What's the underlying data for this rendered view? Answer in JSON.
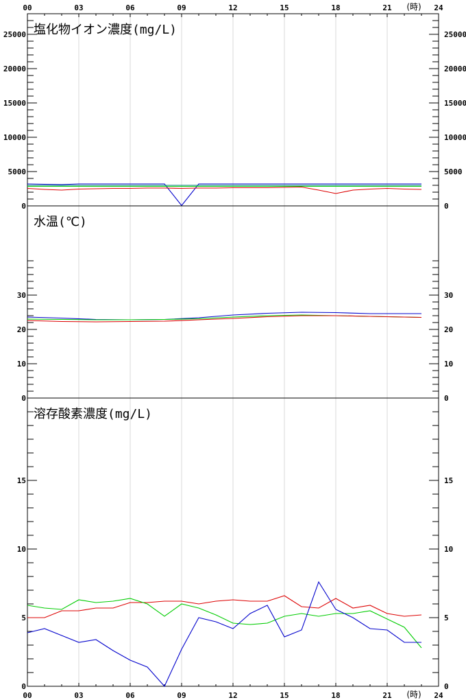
{
  "chart_data": {
    "type": "line",
    "x_axis": {
      "ticks": [
        "00",
        "03",
        "06",
        "09",
        "12",
        "15",
        "18",
        "21",
        "24"
      ],
      "unit": "(時)",
      "range": [
        0,
        24
      ]
    },
    "panels": [
      {
        "title": "塩化物イオン濃度(mg/L)",
        "ylim": [
          0,
          28000
        ],
        "yticks": [
          0,
          5000,
          10000,
          15000,
          20000,
          25000
        ],
        "minor_step": 1000,
        "series": [
          {
            "color": "#0000cc",
            "x": [
              0,
              1,
              2,
              3,
              4,
              5,
              6,
              7,
              8,
              9,
              10,
              11,
              12,
              13,
              14,
              15,
              16,
              17,
              18,
              19,
              20,
              21,
              22,
              23
            ],
            "values": [
              3200,
              3150,
              3100,
              3200,
              3200,
              3200,
              3200,
              3200,
              3200,
              50,
              3200,
              3200,
              3200,
              3200,
              3200,
              3200,
              3200,
              3200,
              3200,
              3200,
              3200,
              3200,
              3200,
              3200
            ]
          },
          {
            "color": "#00cc00",
            "x": [
              0,
              1,
              2,
              3,
              4,
              5,
              6,
              7,
              8,
              9,
              10,
              11,
              12,
              13,
              14,
              15,
              16,
              17,
              18,
              19,
              20,
              21,
              22,
              23
            ],
            "values": [
              2850,
              2850,
              2850,
              2850,
              2850,
              2850,
              2850,
              2850,
              2850,
              2850,
              2850,
              2850,
              2850,
              2850,
              2850,
              2850,
              2850,
              2850,
              2850,
              2850,
              2850,
              2850,
              2850,
              2850
            ]
          },
          {
            "color": "#008080",
            "x": [
              0,
              1,
              2,
              3,
              4,
              5,
              6,
              7,
              8,
              9,
              10,
              11,
              12,
              13,
              14,
              15,
              16,
              17,
              18,
              19,
              20,
              21,
              22,
              23
            ],
            "values": [
              3000,
              3000,
              3000,
              3000,
              3000,
              3000,
              3000,
              3000,
              3000,
              3000,
              3000,
              3000,
              3000,
              3000,
              3000,
              3000,
              3000,
              3000,
              3000,
              3000,
              3000,
              3000,
              3000,
              3000
            ]
          },
          {
            "color": "#dd0000",
            "x": [
              0,
              1,
              2,
              3,
              4,
              5,
              6,
              7,
              8,
              9,
              10,
              11,
              12,
              13,
              14,
              15,
              16,
              17,
              18,
              19,
              20,
              21,
              22,
              23
            ],
            "values": [
              2550,
              2400,
              2300,
              2450,
              2500,
              2550,
              2550,
              2600,
              2600,
              2550,
              2600,
              2600,
              2650,
              2650,
              2650,
              2700,
              2750,
              2300,
              1800,
              2300,
              2450,
              2550,
              2450,
              2400
            ]
          }
        ]
      },
      {
        "title": "水温(℃)",
        "ylim": [
          0,
          56
        ],
        "yticks": [
          0,
          10,
          20,
          30
        ],
        "minor_step": 2,
        "minor_max": 40,
        "series": [
          {
            "color": "#0000cc",
            "x": [
              0,
              2,
              4,
              6,
              8,
              10,
              12,
              14,
              16,
              18,
              20,
              22,
              23
            ],
            "values": [
              23.6,
              23.3,
              22.9,
              22.8,
              22.9,
              23.4,
              24.2,
              24.7,
              25.0,
              24.9,
              24.6,
              24.6,
              24.6
            ]
          },
          {
            "color": "#00cc00",
            "x": [
              0,
              2,
              4,
              6,
              8,
              10,
              12,
              14,
              16,
              18,
              20,
              22,
              23
            ],
            "values": [
              23.0,
              22.9,
              22.8,
              22.8,
              22.9,
              23.1,
              23.6,
              24.0,
              24.2,
              24.0,
              23.8,
              23.6,
              23.5
            ]
          },
          {
            "color": "#dd0000",
            "x": [
              0,
              2,
              4,
              6,
              8,
              10,
              12,
              14,
              16,
              18,
              20,
              22,
              23
            ],
            "values": [
              22.6,
              22.3,
              22.2,
              22.3,
              22.4,
              22.8,
              23.2,
              23.7,
              24.0,
              24.0,
              23.8,
              23.6,
              23.5
            ]
          }
        ]
      },
      {
        "title": "溶存酸素濃度(mg/L)",
        "ylim": [
          0,
          21
        ],
        "yticks": [
          0,
          5,
          10,
          15
        ],
        "minor_step": 1,
        "series": [
          {
            "color": "#dd0000",
            "x": [
              0,
              1,
              2,
              3,
              4,
              5,
              6,
              7,
              8,
              9,
              10,
              11,
              12,
              13,
              14,
              15,
              16,
              17,
              18,
              19,
              20,
              21,
              22,
              23
            ],
            "values": [
              5.0,
              5.0,
              5.5,
              5.5,
              5.7,
              5.7,
              6.1,
              6.1,
              6.2,
              6.2,
              6.0,
              6.2,
              6.3,
              6.2,
              6.2,
              6.6,
              5.8,
              5.7,
              6.4,
              5.7,
              5.9,
              5.3,
              5.1,
              5.2
            ]
          },
          {
            "color": "#00cc00",
            "x": [
              0,
              1,
              2,
              3,
              4,
              5,
              6,
              7,
              8,
              9,
              10,
              11,
              12,
              13,
              14,
              15,
              16,
              17,
              18,
              19,
              20,
              21,
              22,
              23
            ],
            "values": [
              5.9,
              5.7,
              5.6,
              6.3,
              6.1,
              6.2,
              6.4,
              6.0,
              5.1,
              6.0,
              5.7,
              5.2,
              4.6,
              4.5,
              4.6,
              5.1,
              5.3,
              5.1,
              5.3,
              5.3,
              5.5,
              4.9,
              4.3,
              2.8
            ]
          },
          {
            "color": "#0000cc",
            "x": [
              0,
              1,
              2,
              3,
              4,
              5,
              6,
              7,
              8,
              9,
              10,
              11,
              12,
              13,
              14,
              15,
              16,
              17,
              18,
              19,
              20,
              21,
              22,
              23
            ],
            "values": [
              3.9,
              4.2,
              3.7,
              3.2,
              3.4,
              2.6,
              1.9,
              1.4,
              0.0,
              2.7,
              5.0,
              4.7,
              4.2,
              5.3,
              5.9,
              3.6,
              4.1,
              7.6,
              5.6,
              5.0,
              4.2,
              4.1,
              3.2,
              3.2
            ]
          }
        ]
      }
    ]
  }
}
